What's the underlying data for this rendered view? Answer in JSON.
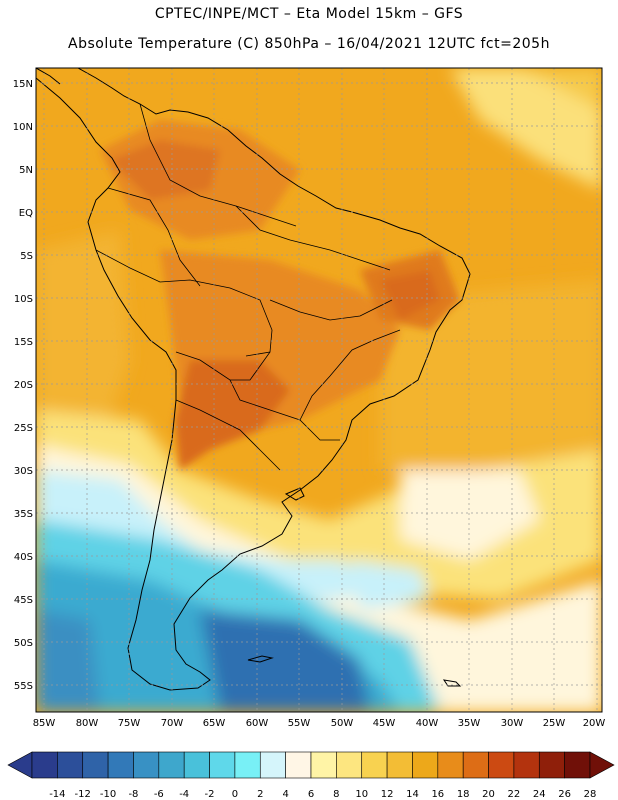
{
  "header": {
    "line1": "CPTEC/INPE/MCT –  Eta Model 15km – GFS",
    "line2": "Absolute Temperature (C) 850hPa – 16/04/2021 12UTC fct=205h"
  },
  "map": {
    "lat_labels": [
      "15N",
      "10N",
      "5N",
      "EQ",
      "5S",
      "10S",
      "15S",
      "20S",
      "25S",
      "30S",
      "35S",
      "40S",
      "45S",
      "50S",
      "55S"
    ],
    "lon_labels": [
      "85W",
      "80W",
      "75W",
      "70W",
      "65W",
      "60W",
      "55W",
      "50W",
      "45W",
      "40W",
      "35W",
      "30W",
      "25W",
      "20W"
    ],
    "colors": {
      "warm_base": "#f1a81e",
      "warm_light": "#f6bf3a",
      "hot": "#e88a22",
      "very_hot": "#d96a1a",
      "mild": "#fbe27a",
      "cool": "#fff6dc",
      "cold_light": "#c8f1fa",
      "cold": "#5fd2e6",
      "colder": "#3aaad0",
      "coldest": "#2f6fb1"
    }
  },
  "colorbar": {
    "ticks": [
      "-14",
      "-12",
      "-10",
      "-8",
      "-6",
      "-4",
      "-2",
      "0",
      "2",
      "4",
      "6",
      "8",
      "10",
      "12",
      "14",
      "16",
      "18",
      "20",
      "22",
      "24",
      "26",
      "28"
    ],
    "colors": [
      "#2a3c8c",
      "#2c4f9a",
      "#2f63a8",
      "#3279b8",
      "#3891c4",
      "#3ea7cc",
      "#49c1da",
      "#5fd8ea",
      "#78f0f6",
      "#d5f5fb",
      "#fff6e6",
      "#fff4a6",
      "#fde680",
      "#f8d250",
      "#f3bd35",
      "#eda81a",
      "#e88c1a",
      "#dd6d16",
      "#cc4a12",
      "#b3330e",
      "#8f1f0a",
      "#701008"
    ]
  }
}
